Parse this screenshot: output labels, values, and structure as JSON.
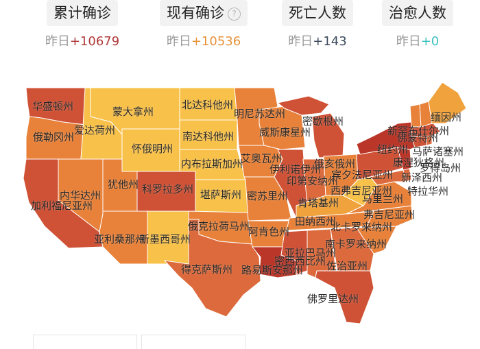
{
  "stats": {
    "yesterday_prefix": "昨日",
    "items": [
      {
        "label": "累计确诊",
        "delta": "+10679",
        "delta_color": "#b03a3a"
      },
      {
        "label": "现有确诊",
        "delta": "+10536",
        "delta_color": "#e8923a"
      },
      {
        "label": "死亡人数",
        "delta": "+143",
        "delta_color": "#3c4a5c"
      },
      {
        "label": "治愈人数",
        "delta": "+0",
        "delta_color": "#3bbfbf"
      }
    ]
  },
  "map": {
    "colors": {
      "level1": "#f8c14a",
      "level2": "#f0a23c",
      "level3": "#e8823a",
      "level4": "#dc6a3c",
      "level5": "#cf5236",
      "level6": "#b93628"
    },
    "states": {
      "WA": "华盛顿州",
      "OR": "俄勒冈州",
      "CA": "加利福尼亚州",
      "NV": "内华达州",
      "ID": "爱达荷州",
      "MT": "蒙大拿州",
      "WY": "怀俄明州",
      "UT": "犹他州",
      "AZ": "亚利桑那州",
      "CO": "科罗拉多州",
      "NM": "新墨西哥州",
      "ND": "北达科他州",
      "SD": "南达科他州",
      "NE": "内布拉斯加州",
      "KS": "堪萨斯州",
      "OK": "俄克拉荷马州",
      "TX": "得克萨斯州",
      "MN": "明尼苏达州",
      "IA": "艾奥瓦州",
      "MO": "密苏里州",
      "AR": "阿肯色州",
      "LA": "路易斯安那州",
      "WI": "威斯康星州",
      "IL": "伊利诺伊州",
      "MI": "密歇根州",
      "IN": "印第安纳州",
      "OH": "俄亥俄州",
      "KY": "肯塔基州",
      "TN": "田纳西州",
      "MS": "密西西比州",
      "AL": "亚拉巴马州",
      "GA": "佐治亚州",
      "FL": "佛罗里达州",
      "SC": "南卡罗来纳州",
      "NC": "北卡罗来纳州",
      "VA": "弗吉尼亚州",
      "WV": "西弗吉尼亚州",
      "PA": "宾夕法尼亚州",
      "NY": "纽约州",
      "NJ": "新泽西州",
      "MD": "马里兰州",
      "DE": "特拉华州",
      "CT": "康涅狄格州",
      "RI": "罗得岛州",
      "MA": "马萨诸塞州",
      "VT": "佛蒙特州",
      "NH": "新罕布什尔州",
      "ME": "缅因州"
    }
  }
}
